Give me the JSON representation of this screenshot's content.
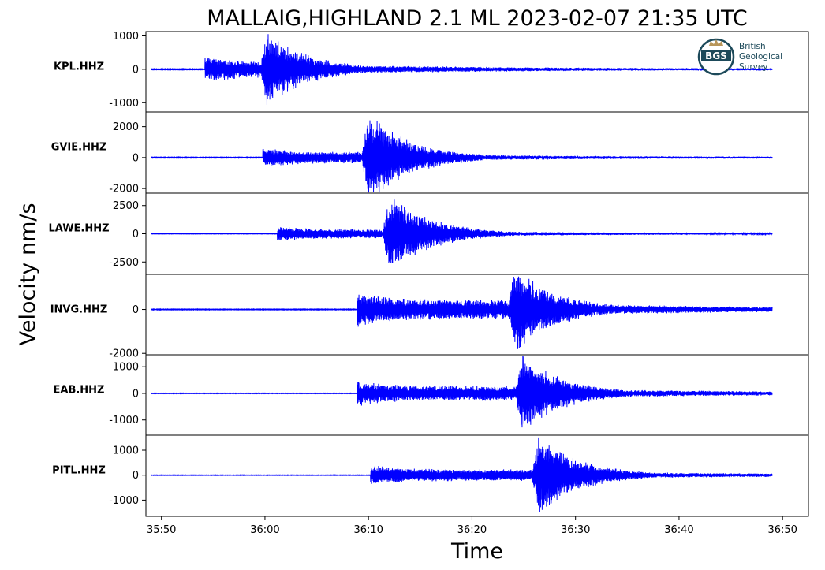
{
  "chart_data": {
    "type": "line",
    "title": "MALLAIG,HIGHLAND 2.1 ML   2023-02-07 21:35 UTC",
    "xlabel": "Time",
    "ylabel": "Velocity nm/s",
    "x_ticks": [
      "35:50",
      "36:00",
      "36:10",
      "36:20",
      "36:30",
      "36:40",
      "36:50"
    ],
    "x_tick_seconds": [
      0,
      10,
      20,
      30,
      40,
      50,
      60
    ],
    "xlim_seconds": [
      -1.5,
      62.5
    ],
    "trace_start_seconds": -1,
    "trace_end_seconds": 59,
    "line_color": "#0000ff",
    "grid": false,
    "panels": [
      {
        "station": "KPL.HHZ",
        "ylim": [
          -1300,
          1130
        ],
        "y_ticks": [
          1000,
          0,
          -1000
        ],
        "y_tick_labels": [
          "1000",
          "0",
          "-1000"
        ],
        "p_arrival_seconds": 4.2,
        "s_arrival_seconds": 9.5,
        "p_amplitude": 420,
        "peak_amplitude": 1080,
        "noise_amplitude": 12
      },
      {
        "station": "GVIE.HHZ",
        "ylim": [
          -2300,
          2950
        ],
        "y_ticks": [
          2000,
          0,
          -2000
        ],
        "y_tick_labels": [
          "2000",
          "0",
          "-2000"
        ],
        "p_arrival_seconds": 9.8,
        "s_arrival_seconds": 19.3,
        "p_amplitude": 650,
        "peak_amplitude": 2850,
        "noise_amplitude": 25
      },
      {
        "station": "LAWE.HHZ",
        "ylim": [
          -3600,
          3600
        ],
        "y_ticks": [
          2500,
          0,
          -2500
        ],
        "y_tick_labels": [
          "2500",
          "0",
          "-2500"
        ],
        "p_arrival_seconds": 11.2,
        "s_arrival_seconds": 21.3,
        "p_amplitude": 700,
        "peak_amplitude": 3400,
        "noise_amplitude": 20
      },
      {
        "station": "INVG.HHZ",
        "ylim": [
          -2100,
          1600
        ],
        "y_ticks": [
          0,
          -2000
        ],
        "y_tick_labels": [
          "0",
          "-2000"
        ],
        "p_arrival_seconds": 18.9,
        "s_arrival_seconds": 33.4,
        "p_amplitude": 800,
        "peak_amplitude": 1950,
        "noise_amplitude": 15
      },
      {
        "station": "EAB.HHZ",
        "ylim": [
          -1600,
          1450
        ],
        "y_ticks": [
          1000,
          0,
          -1000
        ],
        "y_tick_labels": [
          "1000",
          "0",
          "-1000"
        ],
        "p_arrival_seconds": 18.9,
        "s_arrival_seconds": 34.1,
        "p_amplitude": 500,
        "peak_amplitude": 1450,
        "noise_amplitude": 10
      },
      {
        "station": "PITL.HHZ",
        "ylim": [
          -1650,
          1600
        ],
        "y_ticks": [
          1000,
          0,
          -1000
        ],
        "y_tick_labels": [
          "1000",
          "0",
          "-1000"
        ],
        "p_arrival_seconds": 20.2,
        "s_arrival_seconds": 35.7,
        "p_amplitude": 420,
        "peak_amplitude": 1520,
        "noise_amplitude": 10
      }
    ]
  },
  "logo": {
    "abbreviation": "BGS",
    "lines": [
      "British",
      "Geological",
      "Survey"
    ],
    "ring_color": "#1d4a5a",
    "crown_color": "#b8965a"
  }
}
